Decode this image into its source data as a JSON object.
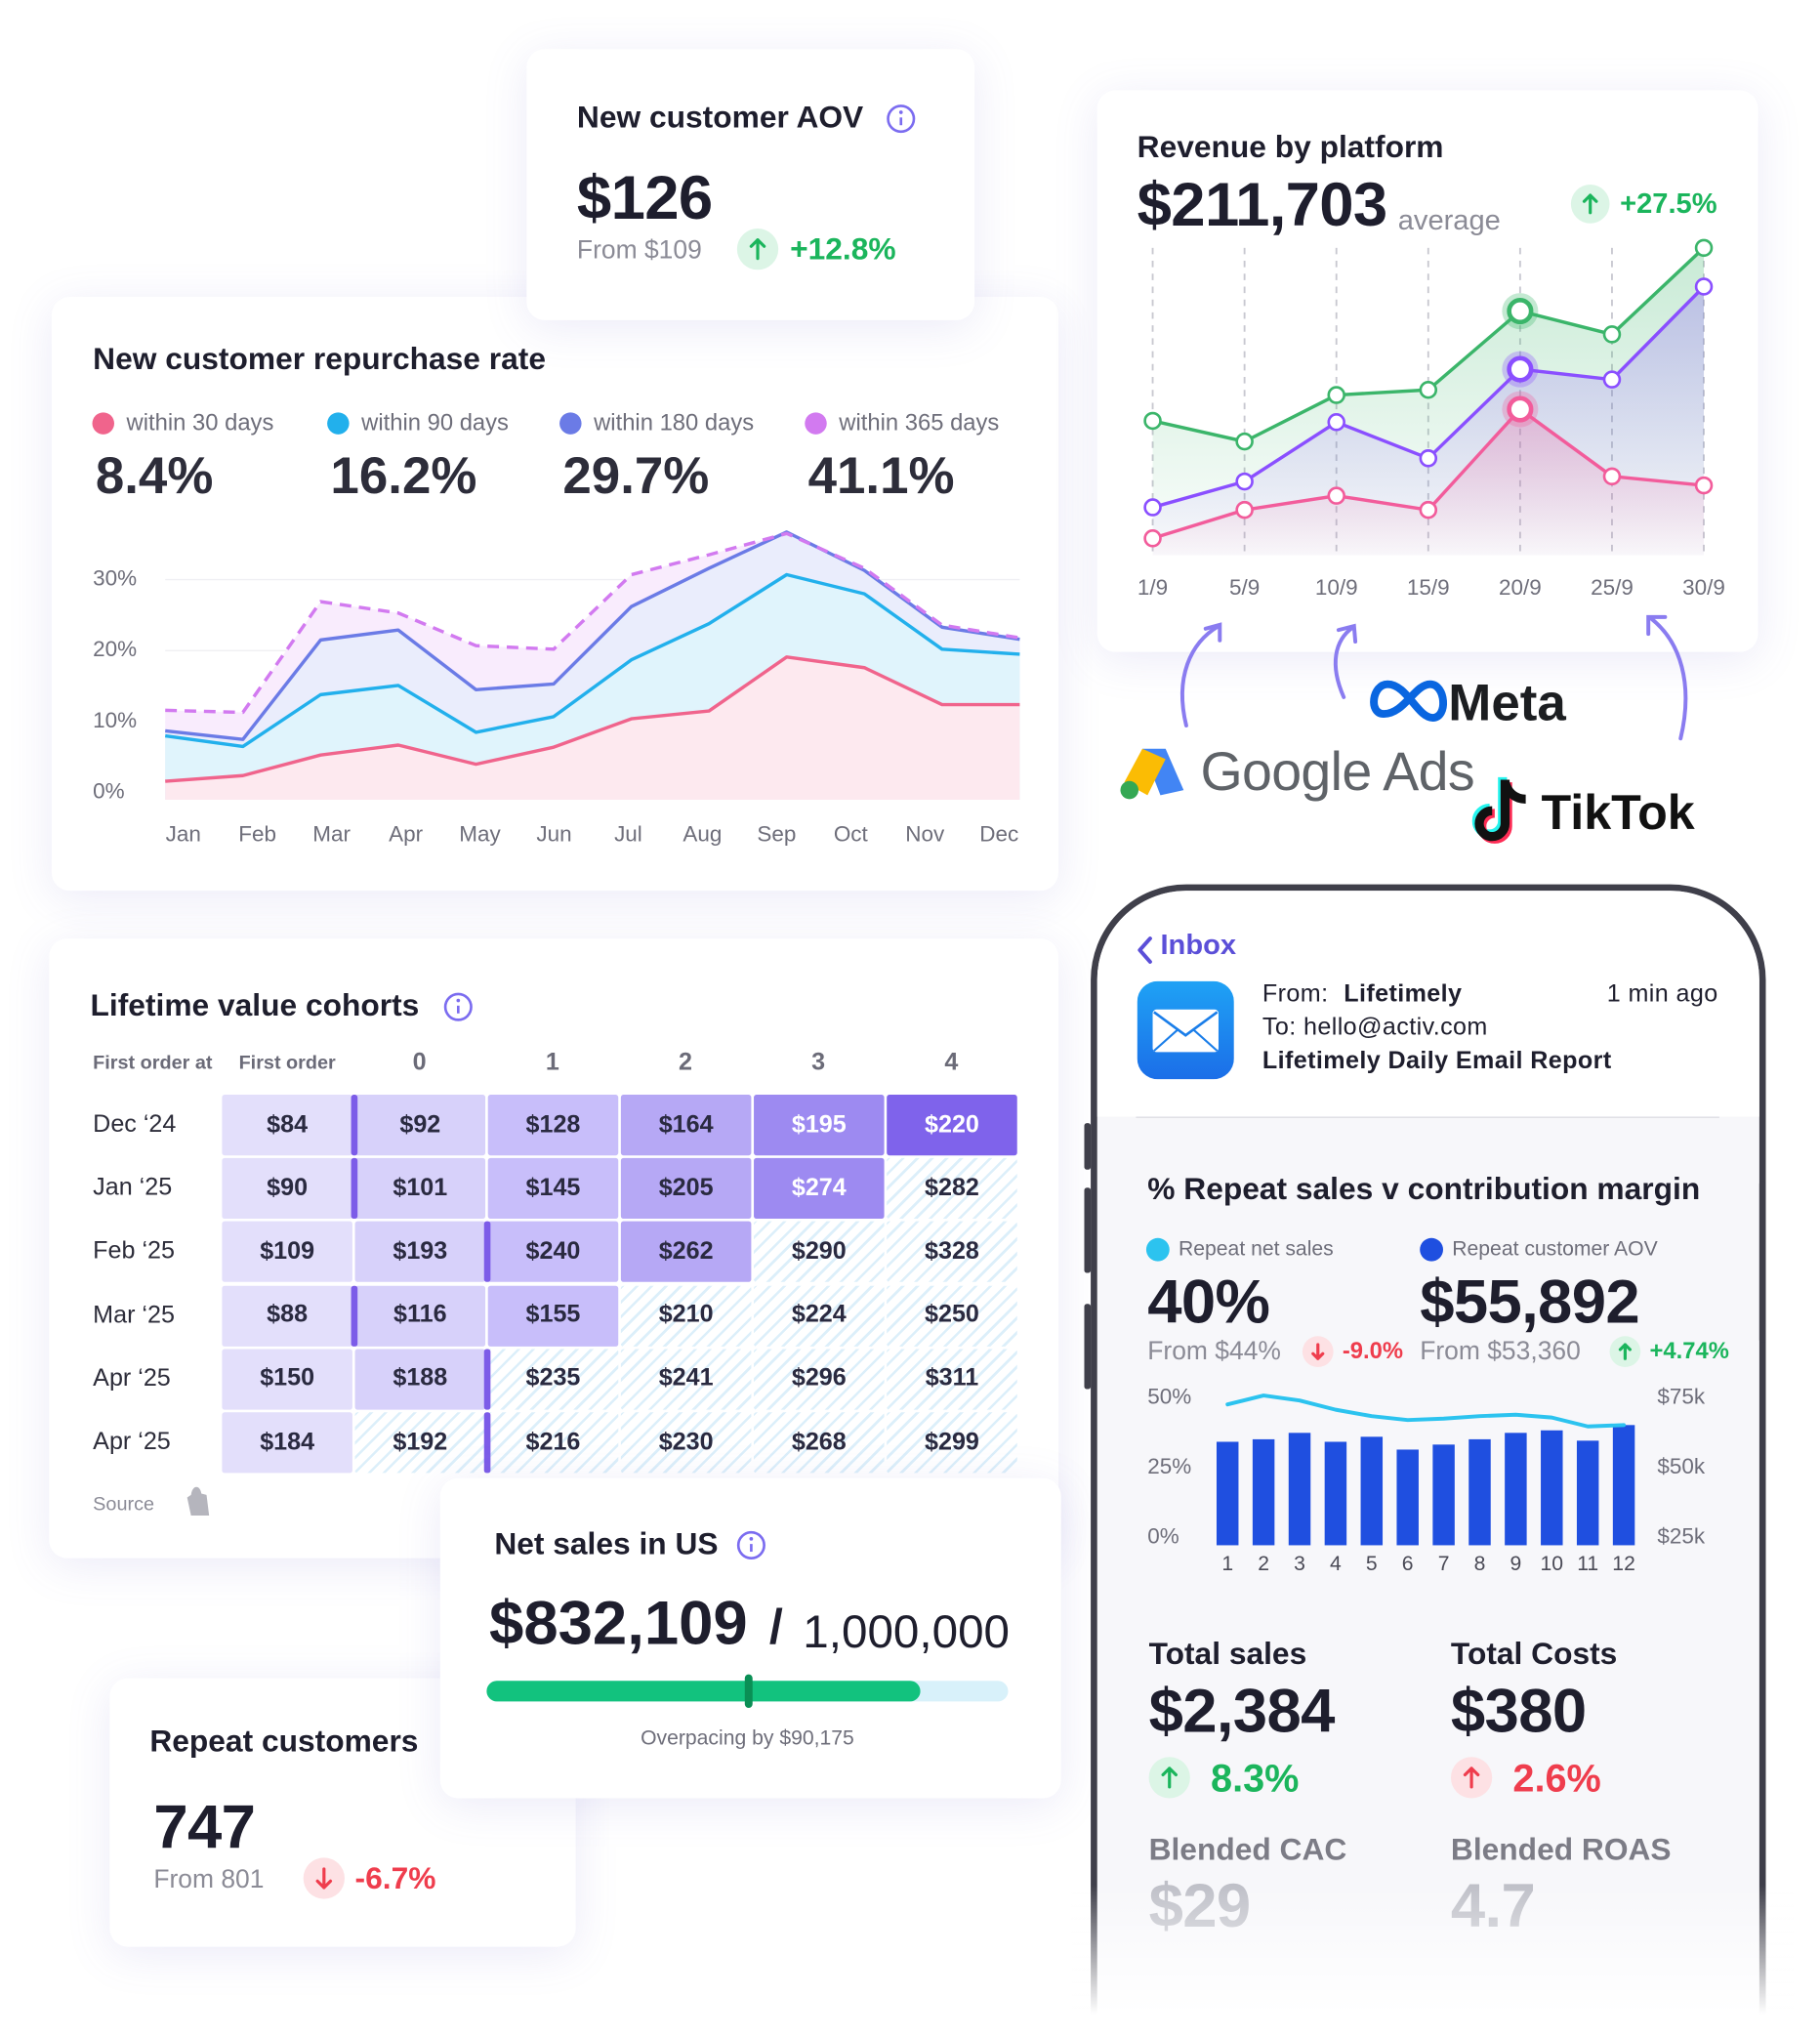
{
  "aov_card": {
    "title": "New customer AOV",
    "value": "$126",
    "from": "From $109",
    "change": "+12.8%"
  },
  "chart_data": [
    {
      "type": "area",
      "title": "New customer repurchase rate",
      "categories": [
        "Jan",
        "Feb",
        "Mar",
        "Apr",
        "May",
        "Jun",
        "Jul",
        "Aug",
        "Sep",
        "Oct",
        "Nov",
        "Dec"
      ],
      "series": [
        {
          "name": "within 30 days",
          "summary": "8.4%",
          "color": "#f0648c",
          "values": [
            1.6,
            2.4,
            5.3,
            6.7,
            4.0,
            6.4,
            10.4,
            11.5,
            19.1,
            17.6,
            12.4,
            12.4
          ]
        },
        {
          "name": "within 90 days",
          "summary": "16.2%",
          "color": "#22b0ec",
          "values": [
            8.0,
            6.5,
            13.8,
            15.1,
            8.5,
            10.7,
            18.7,
            23.8,
            30.7,
            28.0,
            20.2,
            19.5
          ]
        },
        {
          "name": "within 180 days",
          "summary": "29.7%",
          "color": "#6b7be6",
          "values": [
            8.7,
            7.5,
            21.5,
            22.9,
            14.5,
            15.3,
            26.2,
            31.6,
            36.7,
            31.3,
            23.3,
            21.6
          ]
        },
        {
          "name": "within 365 days",
          "summary": "41.1%",
          "color": "#d27af0",
          "dashed": true,
          "values": [
            11.6,
            11.3,
            26.9,
            25.3,
            20.7,
            20.2,
            30.7,
            33.5,
            36.5,
            31.6,
            23.6,
            21.8
          ]
        }
      ],
      "ylim": [
        -1,
        37
      ],
      "yticks": [
        {
          "value": 0,
          "label": "0%"
        },
        {
          "value": 10,
          "label": "10%"
        },
        {
          "value": 20,
          "label": "20%"
        },
        {
          "value": 30,
          "label": "30%"
        }
      ],
      "grid": true
    },
    {
      "type": "line",
      "title": "Revenue by platform",
      "value": "$211,703",
      "value_note": "average",
      "change": "+27.5%",
      "categories": [
        "1/9",
        "5/9",
        "10/9",
        "15/9",
        "20/9",
        "25/9",
        "30/9"
      ],
      "series": [
        {
          "color": "#3bb56a",
          "values": [
            124,
            108,
            144,
            148,
            209,
            191,
            258
          ]
        },
        {
          "color": "#8a4fff",
          "values": [
            57,
            77,
            123,
            95,
            164,
            156,
            228
          ]
        },
        {
          "color": "#f25c9b",
          "values": [
            33,
            55,
            66,
            55,
            133,
            81,
            74
          ]
        }
      ],
      "ylim": [
        20,
        270
      ],
      "highlight_index": 4,
      "platforms": [
        "Meta",
        "Google Ads",
        "TikTok"
      ]
    },
    {
      "type": "bar-line",
      "title": "% Repeat sales v contribution margin",
      "categories": [
        "1",
        "2",
        "3",
        "4",
        "5",
        "6",
        "7",
        "8",
        "9",
        "10",
        "11",
        "12"
      ],
      "series": [
        {
          "name": "Repeat net sales",
          "type": "line",
          "color": "#2cc3ef",
          "summary": "40%",
          "from": "From $44%",
          "change": "-9.0%",
          "values": [
            47.7,
            50.9,
            49.1,
            45.8,
            43.5,
            42.1,
            42.6,
            43.5,
            44.0,
            43.0,
            39.8,
            40.3
          ]
        },
        {
          "name": "Repeat customer AOV",
          "type": "bar",
          "axis": "y2",
          "color": "#1f4fe0",
          "summary": "$55,892",
          "from": "From $53,360",
          "change": "+4.74%",
          "values": [
            59300,
            60200,
            62500,
            59300,
            61100,
            56500,
            58300,
            60200,
            62500,
            63400,
            59700,
            65300
          ]
        }
      ],
      "ylim": [
        -2.8,
        62
      ],
      "yticks": [
        {
          "value": 0,
          "label": "0%"
        },
        {
          "value": 25,
          "label": "25%"
        },
        {
          "value": 50,
          "label": "50%"
        }
      ],
      "y2lim": [
        22200,
        87000
      ],
      "y2ticks": [
        {
          "value": 25000,
          "label": "$25k"
        },
        {
          "value": 50000,
          "label": "$50k"
        },
        {
          "value": 75000,
          "label": "$75k"
        }
      ]
    }
  ],
  "cohorts": {
    "title": "Lifetime value cohorts",
    "columns": [
      "First order at",
      "First order",
      "0",
      "1",
      "2",
      "3",
      "4"
    ],
    "rows": [
      [
        "Dec ‘24",
        "$84",
        "$92",
        "$128",
        "$164",
        "$195",
        "$220"
      ],
      [
        "Jan ‘25",
        "$90",
        "$101",
        "$145",
        "$205",
        "$274",
        "$282"
      ],
      [
        "Feb ‘25",
        "$109",
        "$193",
        "$240",
        "$262",
        "$290",
        "$328"
      ],
      [
        "Mar ‘25",
        "$88",
        "$116",
        "$155",
        "$210",
        "$224",
        "$250"
      ],
      [
        "Apr ‘25",
        "$150",
        "$188",
        "$235",
        "$241",
        "$296",
        "$311"
      ],
      [
        "Apr ‘25",
        "$184",
        "$192",
        "$216",
        "$230",
        "$268",
        "$299"
      ]
    ],
    "source": "Source"
  },
  "net_sales": {
    "title": "Net sales in US",
    "value": "$832,109",
    "separator": "/",
    "target": "1,000,000",
    "note": "Overpacing by $90,175"
  },
  "repeat_customers": {
    "title": "Repeat customers",
    "value": "747",
    "from": "From 801",
    "change": "-6.7%"
  },
  "email": {
    "back": "Inbox",
    "from_label": "From:",
    "from": "Lifetimely",
    "time": "1 min ago",
    "to": "To: hello@activ.com",
    "subject": "Lifetimely Daily Email Report"
  },
  "metrics": [
    {
      "label": "Total sales",
      "value": "$2,384",
      "change": "8.3%"
    },
    {
      "label": "Total Costs",
      "value": "$380",
      "change": "2.6%"
    },
    {
      "label": "Blended CAC",
      "value": "$29"
    },
    {
      "label": "Blended ROAS",
      "value": "4.7"
    }
  ]
}
